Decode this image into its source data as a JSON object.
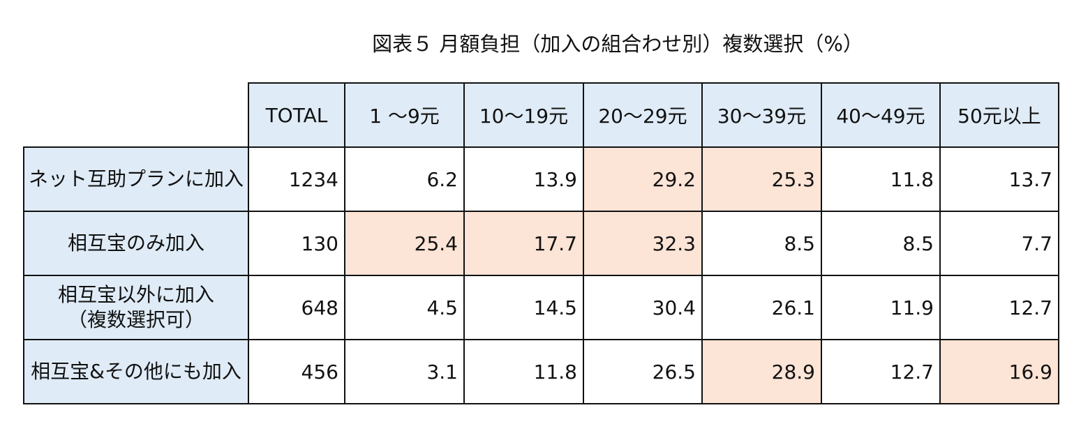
{
  "title": "図表５ 月額負担（加入の組合わせ別）複数選択（%）",
  "table": {
    "header": [
      "TOTAL",
      "1 ～9元",
      "10～19元",
      "20～29元",
      "30～39元",
      "40～49元",
      "50元以上"
    ],
    "header_color": "#dfebf6",
    "highlight_color": "#fce4d6",
    "rows": [
      {
        "label": [
          "ネット互助プランに加入"
        ],
        "values": [
          1234,
          6.2,
          13.9,
          29.2,
          25.3,
          11.8,
          13.7
        ],
        "highlight": [
          3,
          4
        ]
      },
      {
        "label": [
          "相互宝のみ加入"
        ],
        "values": [
          130,
          25.4,
          17.7,
          32.3,
          8.5,
          8.5,
          7.7
        ],
        "highlight": [
          1,
          2,
          3
        ]
      },
      {
        "label": [
          "相互宝以外に加入",
          "（複数選択可）"
        ],
        "values": [
          648,
          4.5,
          14.5,
          30.4,
          26.1,
          11.9,
          12.7
        ],
        "highlight": []
      },
      {
        "label": [
          "相互宝&その他にも加入"
        ],
        "values": [
          456,
          3.1,
          11.8,
          26.5,
          28.9,
          12.7,
          16.9
        ],
        "highlight": [
          4,
          6
        ]
      }
    ]
  }
}
